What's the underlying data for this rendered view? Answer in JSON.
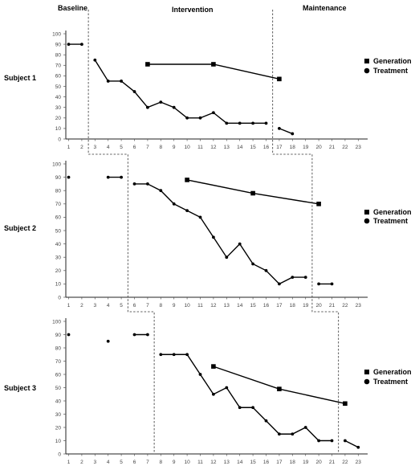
{
  "phase_labels": [
    "Baseline",
    "Intervention",
    "Maintenance"
  ],
  "legend": {
    "generation": "Generation",
    "treatment": "Treatment"
  },
  "chart_data": [
    {
      "type": "line",
      "subject": "Subject 1",
      "x_ticks": [
        1,
        2,
        3,
        4,
        5,
        6,
        7,
        8,
        9,
        10,
        11,
        12,
        13,
        14,
        15,
        16,
        17,
        18,
        19,
        20,
        21,
        22,
        23
      ],
      "y_ticks": [
        0,
        10,
        20,
        30,
        40,
        50,
        60,
        70,
        80,
        90,
        100
      ],
      "ylim": [
        0,
        100
      ],
      "phase_changes": [
        2.5,
        16.5
      ],
      "series": [
        {
          "name": "Treatment",
          "marker": "circle",
          "segments": [
            [
              [
                1,
                90
              ],
              [
                2,
                90
              ]
            ],
            [
              [
                3,
                75
              ],
              [
                4,
                55
              ],
              [
                5,
                55
              ],
              [
                6,
                45
              ],
              [
                7,
                30
              ],
              [
                8,
                35
              ],
              [
                9,
                30
              ],
              [
                10,
                20
              ],
              [
                11,
                20
              ],
              [
                12,
                25
              ],
              [
                13,
                15
              ],
              [
                14,
                15
              ],
              [
                15,
                15
              ],
              [
                16,
                15
              ]
            ],
            [
              [
                17,
                10
              ],
              [
                18,
                5
              ]
            ]
          ]
        },
        {
          "name": "Generation",
          "marker": "square",
          "segments": [
            [
              [
                7,
                71
              ],
              [
                12,
                71
              ],
              [
                17,
                57
              ]
            ]
          ]
        }
      ]
    },
    {
      "type": "line",
      "subject": "Subject 2",
      "x_ticks": [
        1,
        2,
        3,
        4,
        5,
        6,
        7,
        8,
        9,
        10,
        11,
        12,
        13,
        14,
        15,
        16,
        17,
        18,
        19,
        20,
        21,
        22,
        23
      ],
      "y_ticks": [
        0,
        10,
        20,
        30,
        40,
        50,
        60,
        70,
        80,
        90,
        100
      ],
      "ylim": [
        0,
        100
      ],
      "phase_changes": [
        5.5,
        19.5
      ],
      "series": [
        {
          "name": "Treatment",
          "marker": "circle",
          "segments": [
            [
              [
                1,
                90
              ]
            ],
            [
              [
                4,
                90
              ],
              [
                5,
                90
              ]
            ],
            [
              [
                6,
                85
              ],
              [
                7,
                85
              ],
              [
                8,
                80
              ],
              [
                9,
                70
              ],
              [
                10,
                65
              ],
              [
                11,
                60
              ],
              [
                12,
                45
              ],
              [
                13,
                30
              ],
              [
                14,
                40
              ],
              [
                15,
                25
              ],
              [
                16,
                20
              ],
              [
                17,
                10
              ],
              [
                18,
                15
              ],
              [
                19,
                15
              ]
            ],
            [
              [
                20,
                10
              ],
              [
                21,
                10
              ]
            ]
          ]
        },
        {
          "name": "Generation",
          "marker": "square",
          "segments": [
            [
              [
                10,
                88
              ],
              [
                15,
                78
              ],
              [
                20,
                70
              ]
            ]
          ]
        }
      ]
    },
    {
      "type": "line",
      "subject": "Subject 3",
      "x_ticks": [
        1,
        2,
        3,
        4,
        5,
        6,
        7,
        8,
        9,
        10,
        11,
        12,
        13,
        14,
        15,
        16,
        17,
        18,
        19,
        20,
        21,
        22,
        23
      ],
      "y_ticks": [
        0,
        10,
        20,
        30,
        40,
        50,
        60,
        70,
        80,
        90,
        100
      ],
      "ylim": [
        0,
        100
      ],
      "phase_changes": [
        7.5,
        21.5
      ],
      "series": [
        {
          "name": "Treatment",
          "marker": "circle",
          "segments": [
            [
              [
                1,
                90
              ]
            ],
            [
              [
                4,
                85
              ]
            ],
            [
              [
                6,
                90
              ],
              [
                7,
                90
              ]
            ],
            [
              [
                8,
                75
              ],
              [
                9,
                75
              ],
              [
                10,
                75
              ],
              [
                11,
                60
              ],
              [
                12,
                45
              ],
              [
                13,
                50
              ],
              [
                14,
                35
              ],
              [
                15,
                35
              ],
              [
                16,
                25
              ],
              [
                17,
                15
              ],
              [
                18,
                15
              ],
              [
                19,
                20
              ],
              [
                20,
                10
              ],
              [
                21,
                10
              ]
            ],
            [
              [
                22,
                10
              ],
              [
                23,
                5
              ]
            ]
          ]
        },
        {
          "name": "Generation",
          "marker": "square",
          "segments": [
            [
              [
                12,
                66
              ],
              [
                17,
                49
              ],
              [
                22,
                38
              ]
            ]
          ]
        }
      ]
    }
  ]
}
